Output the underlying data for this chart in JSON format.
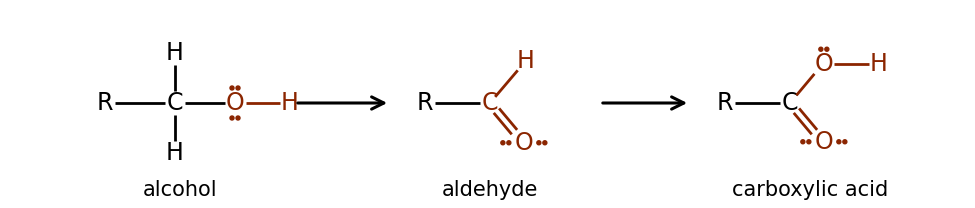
{
  "bg_color": "#ffffff",
  "black": "#000000",
  "red": "#8B2500",
  "label_alcohol": "alcohol",
  "label_aldehyde": "aldehyde",
  "label_carboxylic": "carboxylic acid",
  "figsize": [
    9.75,
    2.08
  ],
  "dpi": 100
}
